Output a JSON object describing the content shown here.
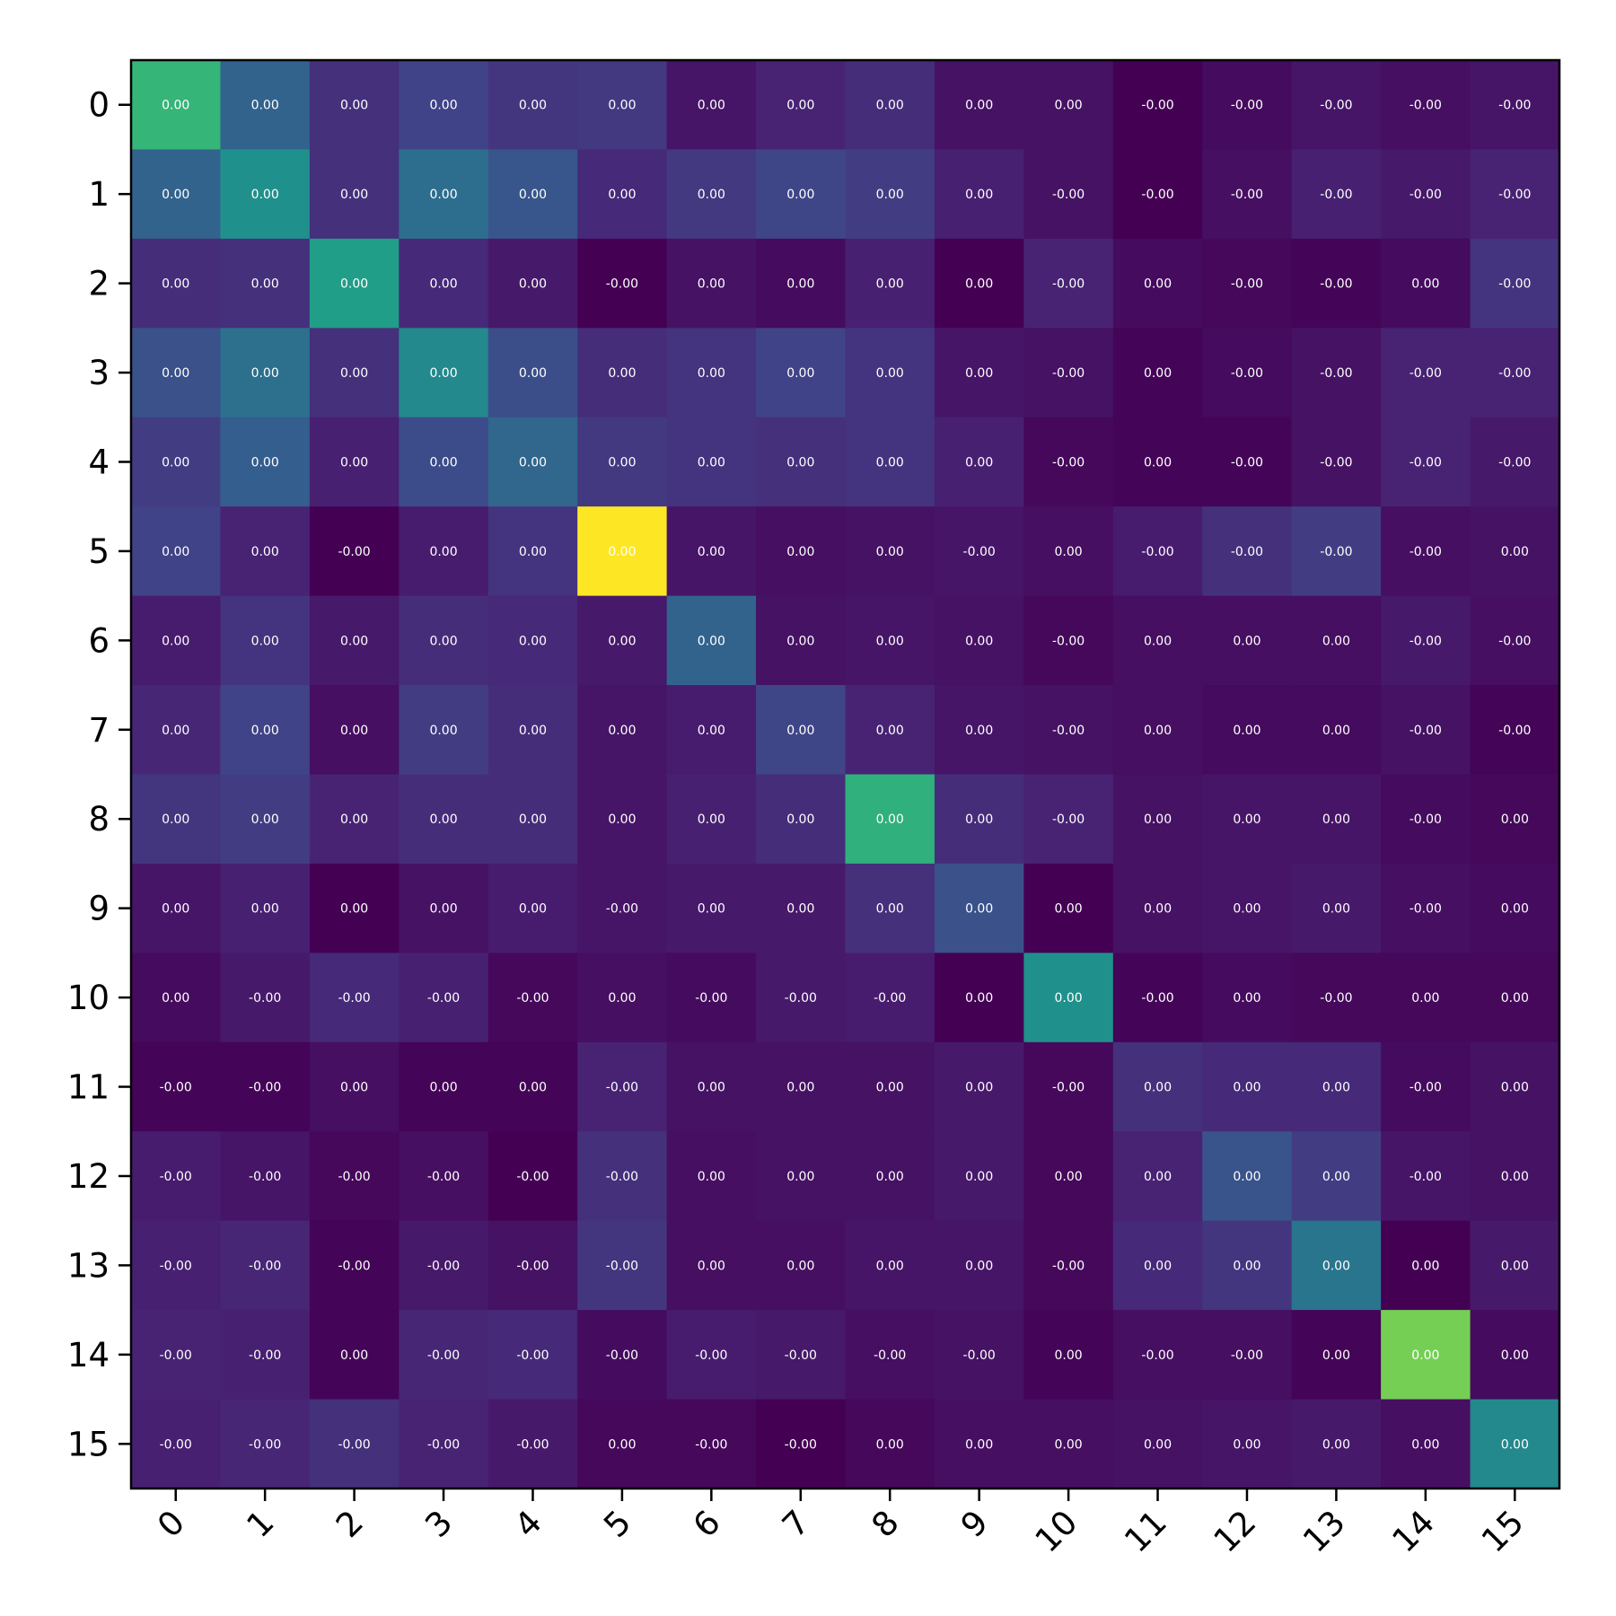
{
  "chart_data": {
    "type": "heatmap",
    "title": "",
    "xlabel": "",
    "ylabel": "",
    "x_categories": [
      "0",
      "1",
      "2",
      "3",
      "4",
      "5",
      "6",
      "7",
      "8",
      "9",
      "10",
      "11",
      "12",
      "13",
      "14",
      "15"
    ],
    "y_categories": [
      "0",
      "1",
      "2",
      "3",
      "4",
      "5",
      "6",
      "7",
      "8",
      "9",
      "10",
      "11",
      "12",
      "13",
      "14",
      "15"
    ],
    "colormap": "viridis",
    "intensity": [
      [
        0.66,
        0.32,
        0.14,
        0.2,
        0.16,
        0.17,
        0.06,
        0.1,
        0.13,
        0.05,
        0.05,
        0.0,
        0.03,
        0.06,
        0.04,
        0.06
      ],
      [
        0.32,
        0.5,
        0.14,
        0.36,
        0.27,
        0.12,
        0.17,
        0.21,
        0.18,
        0.09,
        0.05,
        0.0,
        0.04,
        0.09,
        0.07,
        0.1
      ],
      [
        0.13,
        0.14,
        0.56,
        0.12,
        0.07,
        0.0,
        0.05,
        0.03,
        0.09,
        0.0,
        0.1,
        0.03,
        0.02,
        0.01,
        0.03,
        0.15
      ],
      [
        0.25,
        0.37,
        0.14,
        0.47,
        0.24,
        0.13,
        0.15,
        0.2,
        0.15,
        0.06,
        0.05,
        0.01,
        0.03,
        0.05,
        0.1,
        0.1
      ],
      [
        0.18,
        0.3,
        0.09,
        0.23,
        0.33,
        0.17,
        0.15,
        0.14,
        0.15,
        0.09,
        0.02,
        0.01,
        0.01,
        0.05,
        0.1,
        0.07
      ],
      [
        0.2,
        0.1,
        0.0,
        0.08,
        0.15,
        1.0,
        0.06,
        0.04,
        0.05,
        0.06,
        0.04,
        0.08,
        0.14,
        0.18,
        0.04,
        0.05
      ],
      [
        0.08,
        0.15,
        0.07,
        0.13,
        0.12,
        0.07,
        0.32,
        0.05,
        0.06,
        0.05,
        0.02,
        0.04,
        0.04,
        0.04,
        0.07,
        0.04
      ],
      [
        0.11,
        0.2,
        0.04,
        0.18,
        0.13,
        0.06,
        0.08,
        0.21,
        0.1,
        0.06,
        0.05,
        0.04,
        0.03,
        0.03,
        0.05,
        0.01
      ],
      [
        0.16,
        0.18,
        0.1,
        0.13,
        0.13,
        0.06,
        0.09,
        0.13,
        0.64,
        0.13,
        0.1,
        0.05,
        0.06,
        0.06,
        0.03,
        0.02
      ],
      [
        0.06,
        0.09,
        0.0,
        0.05,
        0.08,
        0.06,
        0.07,
        0.07,
        0.14,
        0.25,
        0.0,
        0.05,
        0.06,
        0.07,
        0.04,
        0.03
      ],
      [
        0.03,
        0.07,
        0.12,
        0.09,
        0.02,
        0.04,
        0.03,
        0.07,
        0.08,
        0.0,
        0.5,
        0.01,
        0.03,
        0.02,
        0.02,
        0.02
      ],
      [
        0.01,
        0.01,
        0.04,
        0.01,
        0.01,
        0.1,
        0.05,
        0.05,
        0.05,
        0.07,
        0.02,
        0.14,
        0.12,
        0.12,
        0.03,
        0.05
      ],
      [
        0.08,
        0.06,
        0.02,
        0.04,
        0.0,
        0.14,
        0.04,
        0.05,
        0.05,
        0.07,
        0.02,
        0.1,
        0.26,
        0.18,
        0.06,
        0.05
      ],
      [
        0.09,
        0.11,
        0.01,
        0.07,
        0.05,
        0.16,
        0.04,
        0.04,
        0.06,
        0.06,
        0.02,
        0.12,
        0.16,
        0.39,
        0.0,
        0.07
      ],
      [
        0.1,
        0.09,
        0.01,
        0.11,
        0.12,
        0.03,
        0.08,
        0.07,
        0.04,
        0.05,
        0.01,
        0.04,
        0.04,
        0.01,
        0.79,
        0.03
      ],
      [
        0.09,
        0.11,
        0.14,
        0.1,
        0.07,
        0.02,
        0.02,
        0.0,
        0.02,
        0.04,
        0.04,
        0.05,
        0.06,
        0.07,
        0.04,
        0.47
      ]
    ],
    "cell_labels": [
      [
        "0.00",
        "0.00",
        "0.00",
        "0.00",
        "0.00",
        "0.00",
        "0.00",
        "0.00",
        "0.00",
        "0.00",
        "0.00",
        "-0.00",
        "-0.00",
        "-0.00",
        "-0.00",
        "-0.00"
      ],
      [
        "0.00",
        "0.00",
        "0.00",
        "0.00",
        "0.00",
        "0.00",
        "0.00",
        "0.00",
        "0.00",
        "0.00",
        "-0.00",
        "-0.00",
        "-0.00",
        "-0.00",
        "-0.00",
        "-0.00"
      ],
      [
        "0.00",
        "0.00",
        "0.00",
        "0.00",
        "0.00",
        "-0.00",
        "0.00",
        "0.00",
        "0.00",
        "0.00",
        "-0.00",
        "0.00",
        "-0.00",
        "-0.00",
        "0.00",
        "-0.00"
      ],
      [
        "0.00",
        "0.00",
        "0.00",
        "0.00",
        "0.00",
        "0.00",
        "0.00",
        "0.00",
        "0.00",
        "0.00",
        "-0.00",
        "0.00",
        "-0.00",
        "-0.00",
        "-0.00",
        "-0.00"
      ],
      [
        "0.00",
        "0.00",
        "0.00",
        "0.00",
        "0.00",
        "0.00",
        "0.00",
        "0.00",
        "0.00",
        "0.00",
        "-0.00",
        "0.00",
        "-0.00",
        "-0.00",
        "-0.00",
        "-0.00"
      ],
      [
        "0.00",
        "0.00",
        "-0.00",
        "0.00",
        "0.00",
        "0.00",
        "0.00",
        "0.00",
        "0.00",
        "-0.00",
        "0.00",
        "-0.00",
        "-0.00",
        "-0.00",
        "-0.00",
        "0.00"
      ],
      [
        "0.00",
        "0.00",
        "0.00",
        "0.00",
        "0.00",
        "0.00",
        "0.00",
        "0.00",
        "0.00",
        "0.00",
        "-0.00",
        "0.00",
        "0.00",
        "0.00",
        "-0.00",
        "-0.00"
      ],
      [
        "0.00",
        "0.00",
        "0.00",
        "0.00",
        "0.00",
        "0.00",
        "0.00",
        "0.00",
        "0.00",
        "0.00",
        "-0.00",
        "0.00",
        "0.00",
        "0.00",
        "-0.00",
        "-0.00"
      ],
      [
        "0.00",
        "0.00",
        "0.00",
        "0.00",
        "0.00",
        "0.00",
        "0.00",
        "0.00",
        "0.00",
        "0.00",
        "-0.00",
        "0.00",
        "0.00",
        "0.00",
        "-0.00",
        "0.00"
      ],
      [
        "0.00",
        "0.00",
        "0.00",
        "0.00",
        "0.00",
        "-0.00",
        "0.00",
        "0.00",
        "0.00",
        "0.00",
        "0.00",
        "0.00",
        "0.00",
        "0.00",
        "-0.00",
        "0.00"
      ],
      [
        "0.00",
        "-0.00",
        "-0.00",
        "-0.00",
        "-0.00",
        "0.00",
        "-0.00",
        "-0.00",
        "-0.00",
        "0.00",
        "0.00",
        "-0.00",
        "0.00",
        "-0.00",
        "0.00",
        "0.00"
      ],
      [
        "-0.00",
        "-0.00",
        "0.00",
        "0.00",
        "0.00",
        "-0.00",
        "0.00",
        "0.00",
        "0.00",
        "0.00",
        "-0.00",
        "0.00",
        "0.00",
        "0.00",
        "-0.00",
        "0.00"
      ],
      [
        "-0.00",
        "-0.00",
        "-0.00",
        "-0.00",
        "-0.00",
        "-0.00",
        "0.00",
        "0.00",
        "0.00",
        "0.00",
        "0.00",
        "0.00",
        "0.00",
        "0.00",
        "-0.00",
        "0.00"
      ],
      [
        "-0.00",
        "-0.00",
        "-0.00",
        "-0.00",
        "-0.00",
        "-0.00",
        "0.00",
        "0.00",
        "0.00",
        "0.00",
        "-0.00",
        "0.00",
        "0.00",
        "0.00",
        "0.00",
        "0.00"
      ],
      [
        "-0.00",
        "-0.00",
        "0.00",
        "-0.00",
        "-0.00",
        "-0.00",
        "-0.00",
        "-0.00",
        "-0.00",
        "-0.00",
        "0.00",
        "-0.00",
        "-0.00",
        "0.00",
        "0.00",
        "0.00"
      ],
      [
        "-0.00",
        "-0.00",
        "-0.00",
        "-0.00",
        "-0.00",
        "0.00",
        "-0.00",
        "-0.00",
        "0.00",
        "0.00",
        "0.00",
        "0.00",
        "0.00",
        "0.00",
        "0.00",
        "0.00"
      ]
    ],
    "grid": false,
    "colorbar": false
  }
}
